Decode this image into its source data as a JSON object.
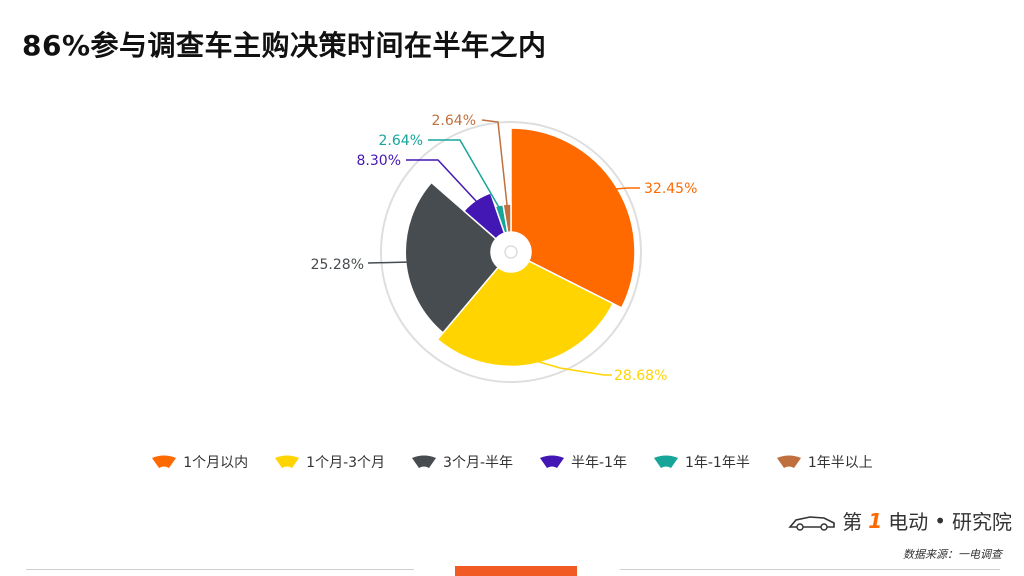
{
  "title": "86%参与调查车主购决策时间在半年之内",
  "chart_data": {
    "type": "pie",
    "style": "nightingale-rose",
    "slices": [
      {
        "label": "1个月以内",
        "value": 32.45,
        "display": "32.45%",
        "color": "#ff6a00"
      },
      {
        "label": "1个月-3个月",
        "value": 28.68,
        "display": "28.68%",
        "color": "#ffd400"
      },
      {
        "label": "3个月-半年",
        "value": 25.28,
        "display": "25.28%",
        "color": "#474c50"
      },
      {
        "label": "半年-1年",
        "value": 8.3,
        "display": "8.30%",
        "color": "#4317b4"
      },
      {
        "label": "1年-1年半",
        "value": 2.64,
        "display": "2.64%",
        "color": "#17a59a"
      },
      {
        "label": "1年半以上",
        "value": 2.64,
        "display": "2.64%",
        "color": "#c0703e"
      }
    ],
    "legend_position": "bottom"
  },
  "logo": {
    "text_left": "第",
    "text_num": "1",
    "text_mid": "电动",
    "dot": "•",
    "text_right": "研究院"
  },
  "source": "数据来源：一电调查"
}
